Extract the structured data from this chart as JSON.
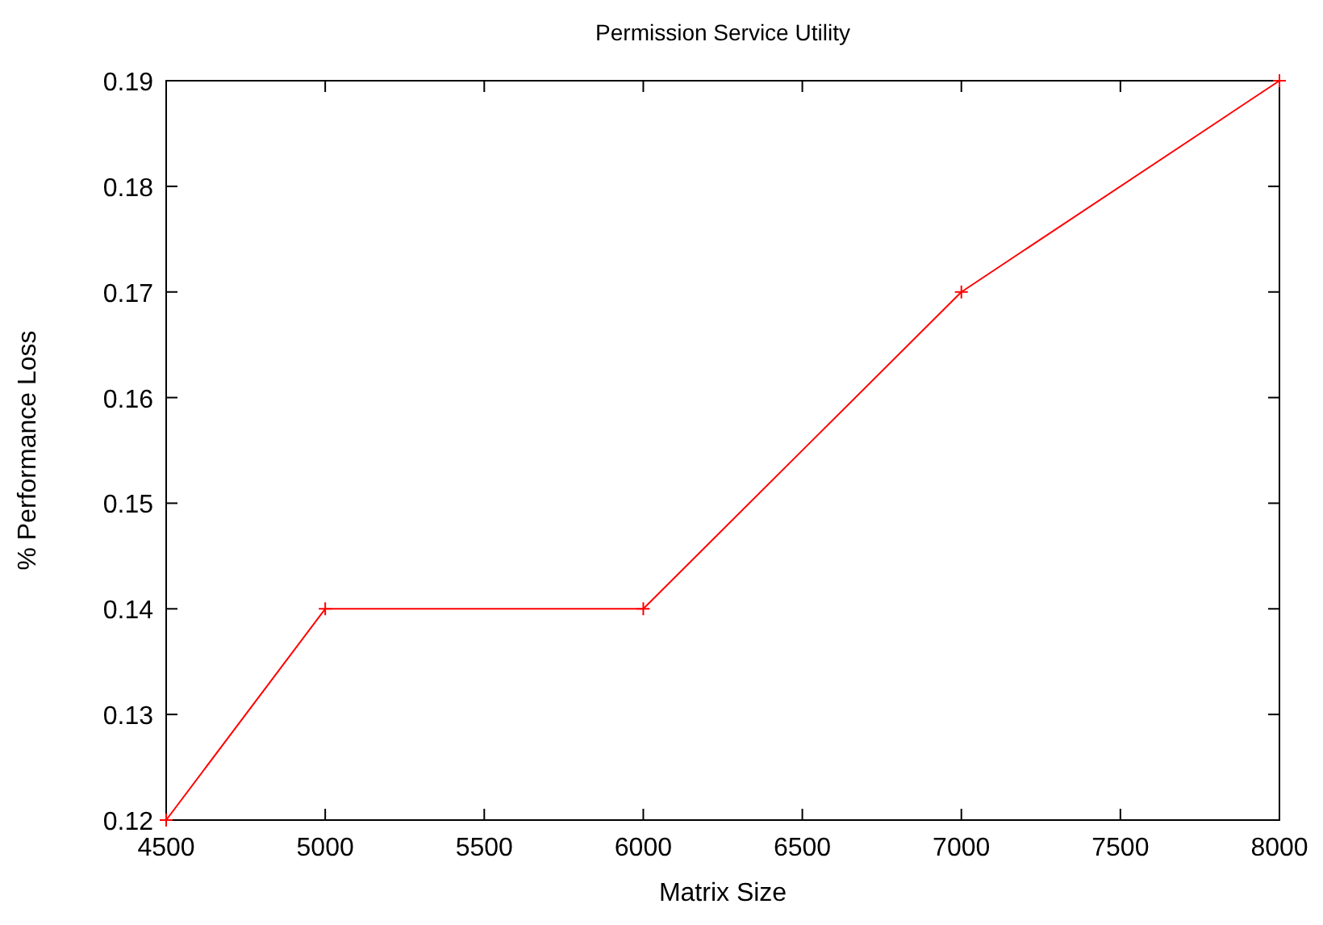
{
  "chart_data": {
    "type": "line",
    "title": "Permission Service Utility",
    "xlabel": "Matrix Size",
    "ylabel": "% Performance Loss",
    "x": [
      4500,
      5000,
      6000,
      7000,
      8000
    ],
    "series": [
      {
        "color": "#ff0000",
        "values": [
          0.12,
          0.14,
          0.14,
          0.17,
          0.19
        ]
      }
    ],
    "xlim": [
      4500,
      8000
    ],
    "xticks": [
      4500,
      5000,
      5500,
      6000,
      6500,
      7000,
      7500,
      8000
    ],
    "ylim": [
      0.12,
      0.19
    ],
    "yticks": [
      0.12,
      0.13,
      0.14,
      0.15,
      0.16,
      0.17,
      0.18,
      0.19
    ],
    "marker": "cross",
    "line_style": "solid",
    "grid": false
  }
}
